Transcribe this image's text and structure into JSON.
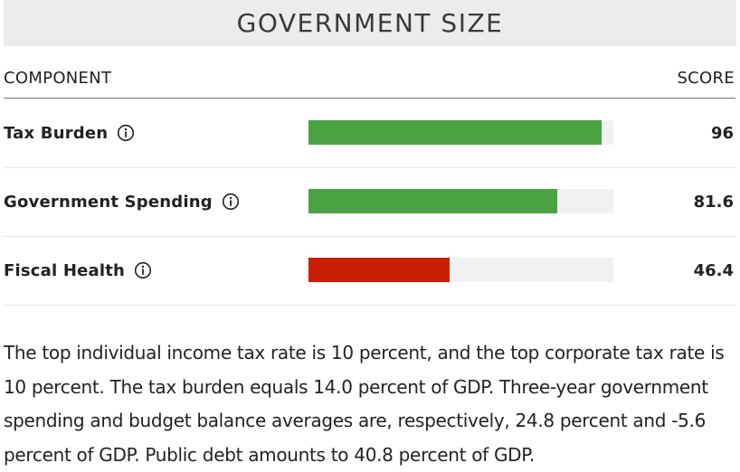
{
  "header": {
    "title": "GOVERNMENT SIZE"
  },
  "columns": {
    "component": "COMPONENT",
    "score": "SCORE"
  },
  "rows": [
    {
      "label": "Tax Burden",
      "score": "96",
      "value": 96,
      "color": "#4aa243",
      "icon": "info-icon"
    },
    {
      "label": "Government Spending",
      "score": "81.6",
      "value": 81.6,
      "color": "#4aa243",
      "icon": "info-icon"
    },
    {
      "label": "Fiscal Health",
      "score": "46.4",
      "value": 46.4,
      "color": "#c91f06",
      "icon": "info-icon"
    }
  ],
  "chart_data": {
    "type": "bar",
    "orientation": "horizontal",
    "title": "GOVERNMENT SIZE",
    "categories": [
      "Tax Burden",
      "Government Spending",
      "Fiscal Health"
    ],
    "values": [
      96,
      81.6,
      46.4
    ],
    "xlim": [
      0,
      100
    ],
    "grid": false,
    "colors": [
      "#4aa243",
      "#4aa243",
      "#c91f06"
    ]
  },
  "description": "The top individual income tax rate is 10 percent, and the top corporate tax rate is 10 percent. The tax burden equals 14.0 percent of GDP. Three-year government spending and budget balance averages are, respectively, 24.8 percent and -5.6 percent of GDP. Public debt amounts to 40.8 percent of GDP."
}
